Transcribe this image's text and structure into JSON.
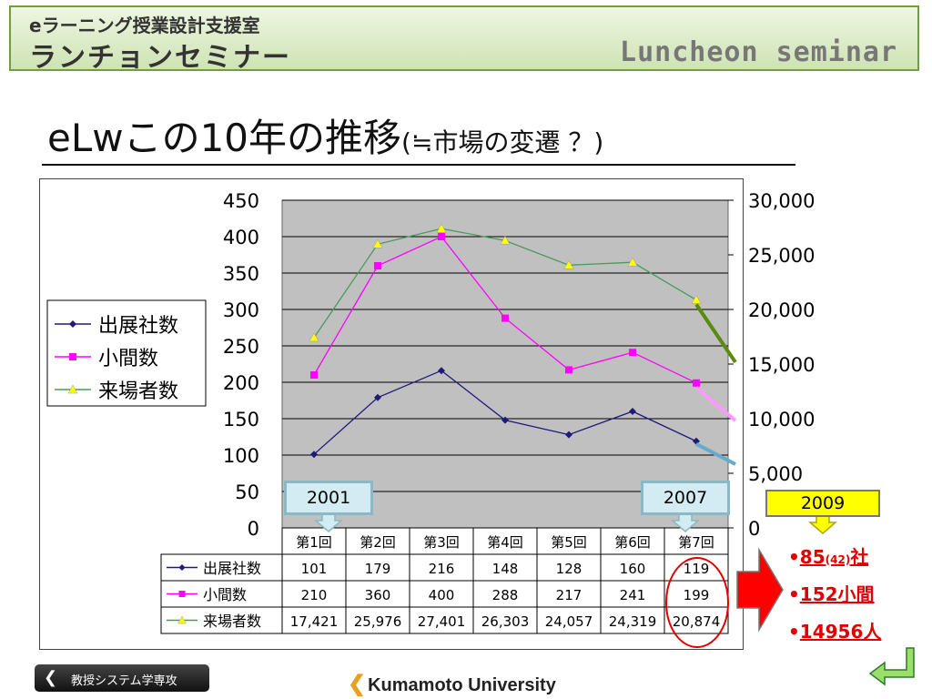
{
  "header": {
    "small_title": "eラーニング授業設計支援室",
    "big_title": "ランチョンセミナー",
    "english_title": "Luncheon seminar"
  },
  "slide": {
    "title_main": "eLwこの10年の推移",
    "title_sub": "(≒市場の変遷 ？)"
  },
  "chart_data": {
    "type": "line",
    "categories": [
      "第1回",
      "第2回",
      "第3回",
      "第4回",
      "第5回",
      "第6回",
      "第7回"
    ],
    "series": [
      {
        "name": "出展社数",
        "axis": "left",
        "color": "#1f1a7a",
        "marker": "diamond",
        "values": [
          101,
          179,
          216,
          148,
          128,
          160,
          119
        ],
        "labels": [
          "101",
          "179",
          "216",
          "148",
          "128",
          "160",
          "119"
        ]
      },
      {
        "name": "小間数",
        "axis": "left",
        "color": "#ff00ff",
        "marker": "square",
        "values": [
          210,
          360,
          400,
          288,
          217,
          241,
          199
        ],
        "labels": [
          "210",
          "360",
          "400",
          "288",
          "217",
          "241",
          "199"
        ]
      },
      {
        "name": "来場者数",
        "axis": "right",
        "color": "#4a9a5a",
        "marker": "triangle",
        "values": [
          17421,
          25976,
          27401,
          26303,
          24057,
          24319,
          20874
        ],
        "labels": [
          "17,421",
          "25,976",
          "27,401",
          "26,303",
          "24,057",
          "24,319",
          "20,874"
        ]
      }
    ],
    "ylim_left": [
      0,
      450
    ],
    "yticks_left": [
      "0",
      "50",
      "100",
      "150",
      "200",
      "250",
      "300",
      "350",
      "400",
      "450"
    ],
    "ylim_right": [
      0,
      30000
    ],
    "yticks_right": [
      "0",
      "5,000",
      "10,000",
      "15,000",
      "20,000",
      "25,000",
      "30,000"
    ],
    "legend_position": "left",
    "plot_background": "#c0c0c0",
    "grid": true
  },
  "annotations": {
    "callout_2001": "2001",
    "callout_2007": "2007",
    "callout_2009": "2009",
    "bullets": [
      {
        "prefix": "•",
        "main": "85",
        "small": "(42)",
        "tail": "社"
      },
      {
        "prefix": "•",
        "main": "152小間",
        "small": "",
        "tail": ""
      },
      {
        "prefix": "•",
        "main": "14956人",
        "small": "",
        "tail": ""
      }
    ]
  },
  "footer": {
    "left_button": "教授システム学専攻",
    "university": "Kumamoto University"
  }
}
